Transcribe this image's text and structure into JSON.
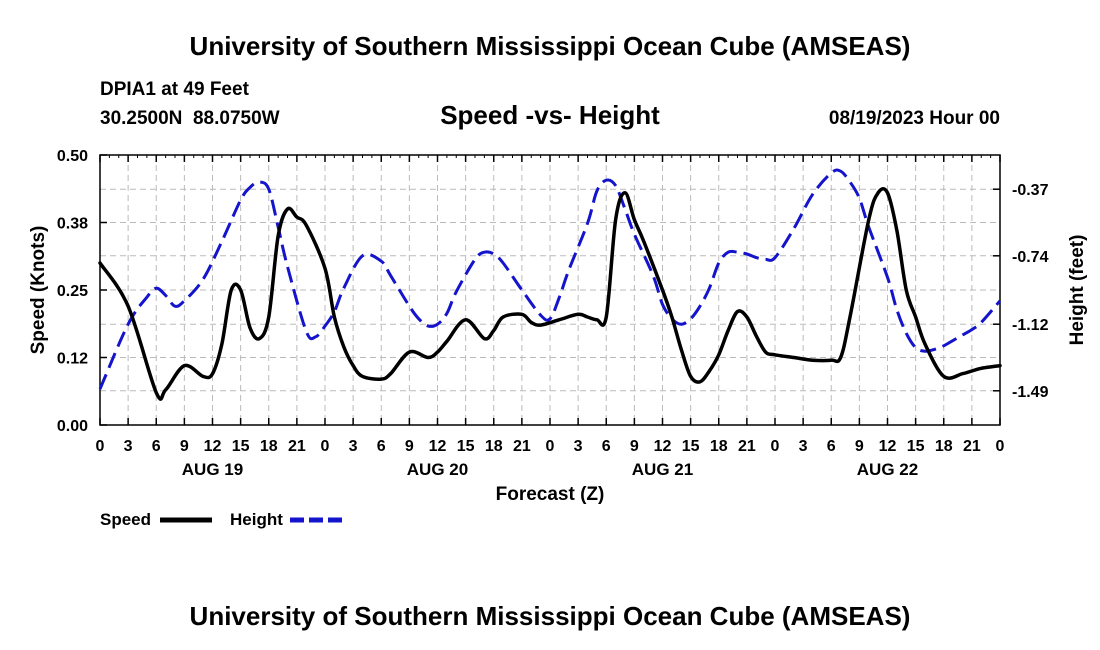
{
  "header": {
    "title": "University of Southern Mississippi Ocean Cube (AMSEAS)",
    "station": "DPIA1 at 49 Feet",
    "coords": "30.2500N  88.0750W",
    "subtitle": "Speed -vs- Height",
    "date": "08/19/2023 Hour 00"
  },
  "footer": {
    "title": "University of Southern Mississippi Ocean Cube (AMSEAS)"
  },
  "colors": {
    "speed": "#000000",
    "height": "#1414cc",
    "grid": "#bbbbbb"
  },
  "chart_data": {
    "type": "line",
    "title": "Speed -vs- Height",
    "xlabel": "Forecast (Z)",
    "ylabel": "Speed (Knots)",
    "y2label": "Height (feet)",
    "x_range_hours": [
      0,
      96
    ],
    "y_range": [
      0,
      0.5
    ],
    "y_ticks": [
      "0.00",
      "0.12",
      "0.25",
      "0.38",
      "0.50"
    ],
    "y_tick_values": [
      0,
      0.125,
      0.25,
      0.375,
      0.5
    ],
    "y2_range": [
      -1.68,
      -0.18
    ],
    "y2_ticks": [
      "-1.49",
      "-1.12",
      "-0.74",
      "-0.37"
    ],
    "y2_tick_values": [
      -1.49,
      -1.12,
      -0.74,
      -0.37
    ],
    "x_ticks": [
      "0",
      "3",
      "6",
      "9",
      "12",
      "15",
      "18",
      "21",
      "0",
      "3",
      "6",
      "9",
      "12",
      "15",
      "18",
      "21",
      "0",
      "3",
      "6",
      "9",
      "12",
      "15",
      "18",
      "21",
      "0",
      "3",
      "6",
      "9",
      "12",
      "15",
      "18",
      "21",
      "0"
    ],
    "x_tick_hours": [
      0,
      3,
      6,
      9,
      12,
      15,
      18,
      21,
      24,
      27,
      30,
      33,
      36,
      39,
      42,
      45,
      48,
      51,
      54,
      57,
      60,
      63,
      66,
      69,
      72,
      75,
      78,
      81,
      84,
      87,
      90,
      93,
      96
    ],
    "day_labels": [
      "AUG 19",
      "AUG 20",
      "AUG 21",
      "AUG 22"
    ],
    "day_label_hours": [
      12,
      36,
      60,
      84
    ],
    "legend": [
      "Speed",
      "Height"
    ],
    "series": [
      {
        "name": "Speed",
        "style": "solid",
        "axis": "left",
        "x": [
          0,
          3,
          6,
          7,
          9,
          11,
          12,
          13,
          14,
          15,
          16,
          17,
          18,
          19,
          20,
          21,
          22,
          24,
          25,
          26,
          27,
          28,
          30,
          31,
          33,
          35,
          36,
          37,
          39,
          41,
          42,
          43,
          45,
          46,
          47,
          49,
          51,
          52,
          53,
          54,
          55,
          56,
          57,
          58,
          60,
          61,
          62,
          63,
          64,
          65,
          66,
          67,
          68,
          69,
          70,
          71,
          72,
          74,
          76,
          78,
          79,
          80,
          82,
          83,
          84,
          85,
          86,
          87,
          88,
          90,
          92,
          93,
          94,
          96
        ],
        "values": [
          0.3,
          0.22,
          0.06,
          0.065,
          0.11,
          0.09,
          0.095,
          0.15,
          0.25,
          0.25,
          0.18,
          0.16,
          0.2,
          0.35,
          0.4,
          0.385,
          0.37,
          0.29,
          0.2,
          0.145,
          0.11,
          0.09,
          0.085,
          0.095,
          0.135,
          0.125,
          0.135,
          0.155,
          0.195,
          0.16,
          0.175,
          0.2,
          0.205,
          0.19,
          0.185,
          0.195,
          0.205,
          0.2,
          0.195,
          0.2,
          0.38,
          0.43,
          0.38,
          0.34,
          0.25,
          0.2,
          0.14,
          0.09,
          0.08,
          0.1,
          0.13,
          0.175,
          0.21,
          0.2,
          0.165,
          0.135,
          0.13,
          0.125,
          0.12,
          0.12,
          0.125,
          0.2,
          0.38,
          0.43,
          0.43,
          0.36,
          0.25,
          0.2,
          0.15,
          0.09,
          0.095,
          0.1,
          0.105,
          0.11
        ]
      },
      {
        "name": "Height",
        "style": "dashed",
        "axis": "right",
        "x": [
          0,
          3,
          5,
          6,
          7,
          8,
          9,
          11,
          13,
          15,
          16,
          17,
          18,
          19,
          20,
          22,
          23,
          24,
          25,
          26,
          28,
          30,
          31,
          33,
          34,
          35,
          36,
          37,
          38,
          40,
          41,
          42,
          43,
          45,
          47,
          48,
          49,
          50,
          52,
          53,
          54,
          55,
          56,
          57,
          59,
          60,
          61,
          62,
          63,
          64,
          65,
          66,
          67,
          68,
          69,
          70,
          71,
          72,
          74,
          76,
          78,
          79,
          80,
          81,
          82,
          84,
          85,
          86,
          87,
          88,
          89,
          90,
          91,
          92,
          93,
          94,
          96
        ],
        "values": [
          -1.48,
          -1.12,
          -0.97,
          -0.92,
          -0.96,
          -1.02,
          -0.99,
          -0.87,
          -0.66,
          -0.43,
          -0.36,
          -0.33,
          -0.37,
          -0.58,
          -0.8,
          -1.16,
          -1.19,
          -1.13,
          -1.05,
          -0.92,
          -0.74,
          -0.77,
          -0.85,
          -1.02,
          -1.09,
          -1.13,
          -1.12,
          -1.06,
          -0.94,
          -0.76,
          -0.72,
          -0.73,
          -0.78,
          -0.93,
          -1.07,
          -1.09,
          -0.97,
          -0.82,
          -0.56,
          -0.38,
          -0.32,
          -0.35,
          -0.48,
          -0.62,
          -0.85,
          -1.01,
          -1.09,
          -1.12,
          -1.09,
          -1.02,
          -0.92,
          -0.78,
          -0.72,
          -0.72,
          -0.73,
          -0.75,
          -0.76,
          -0.75,
          -0.59,
          -0.4,
          -0.28,
          -0.27,
          -0.33,
          -0.42,
          -0.58,
          -0.86,
          -1.04,
          -1.17,
          -1.25,
          -1.27,
          -1.26,
          -1.24,
          -1.21,
          -1.18,
          -1.15,
          -1.11,
          -0.99
        ]
      }
    ]
  }
}
